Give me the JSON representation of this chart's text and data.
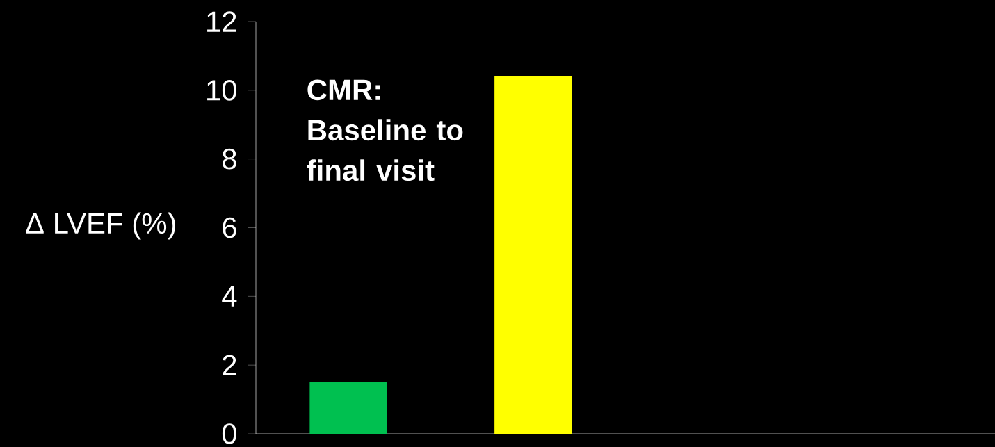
{
  "chart_data": {
    "type": "bar",
    "categories": [
      null,
      null,
      null,
      null
    ],
    "values": [
      1.5,
      10.4,
      null,
      null
    ],
    "colors": [
      "#00c050",
      "#ffff00",
      null,
      null
    ],
    "ylabel": "Δ LVEF (%)",
    "ylim": [
      0,
      12
    ],
    "yticks": [
      0,
      2,
      4,
      6,
      8,
      10,
      12
    ],
    "grid": false,
    "annotations": [
      "CMR: Baseline to final visit"
    ]
  }
}
